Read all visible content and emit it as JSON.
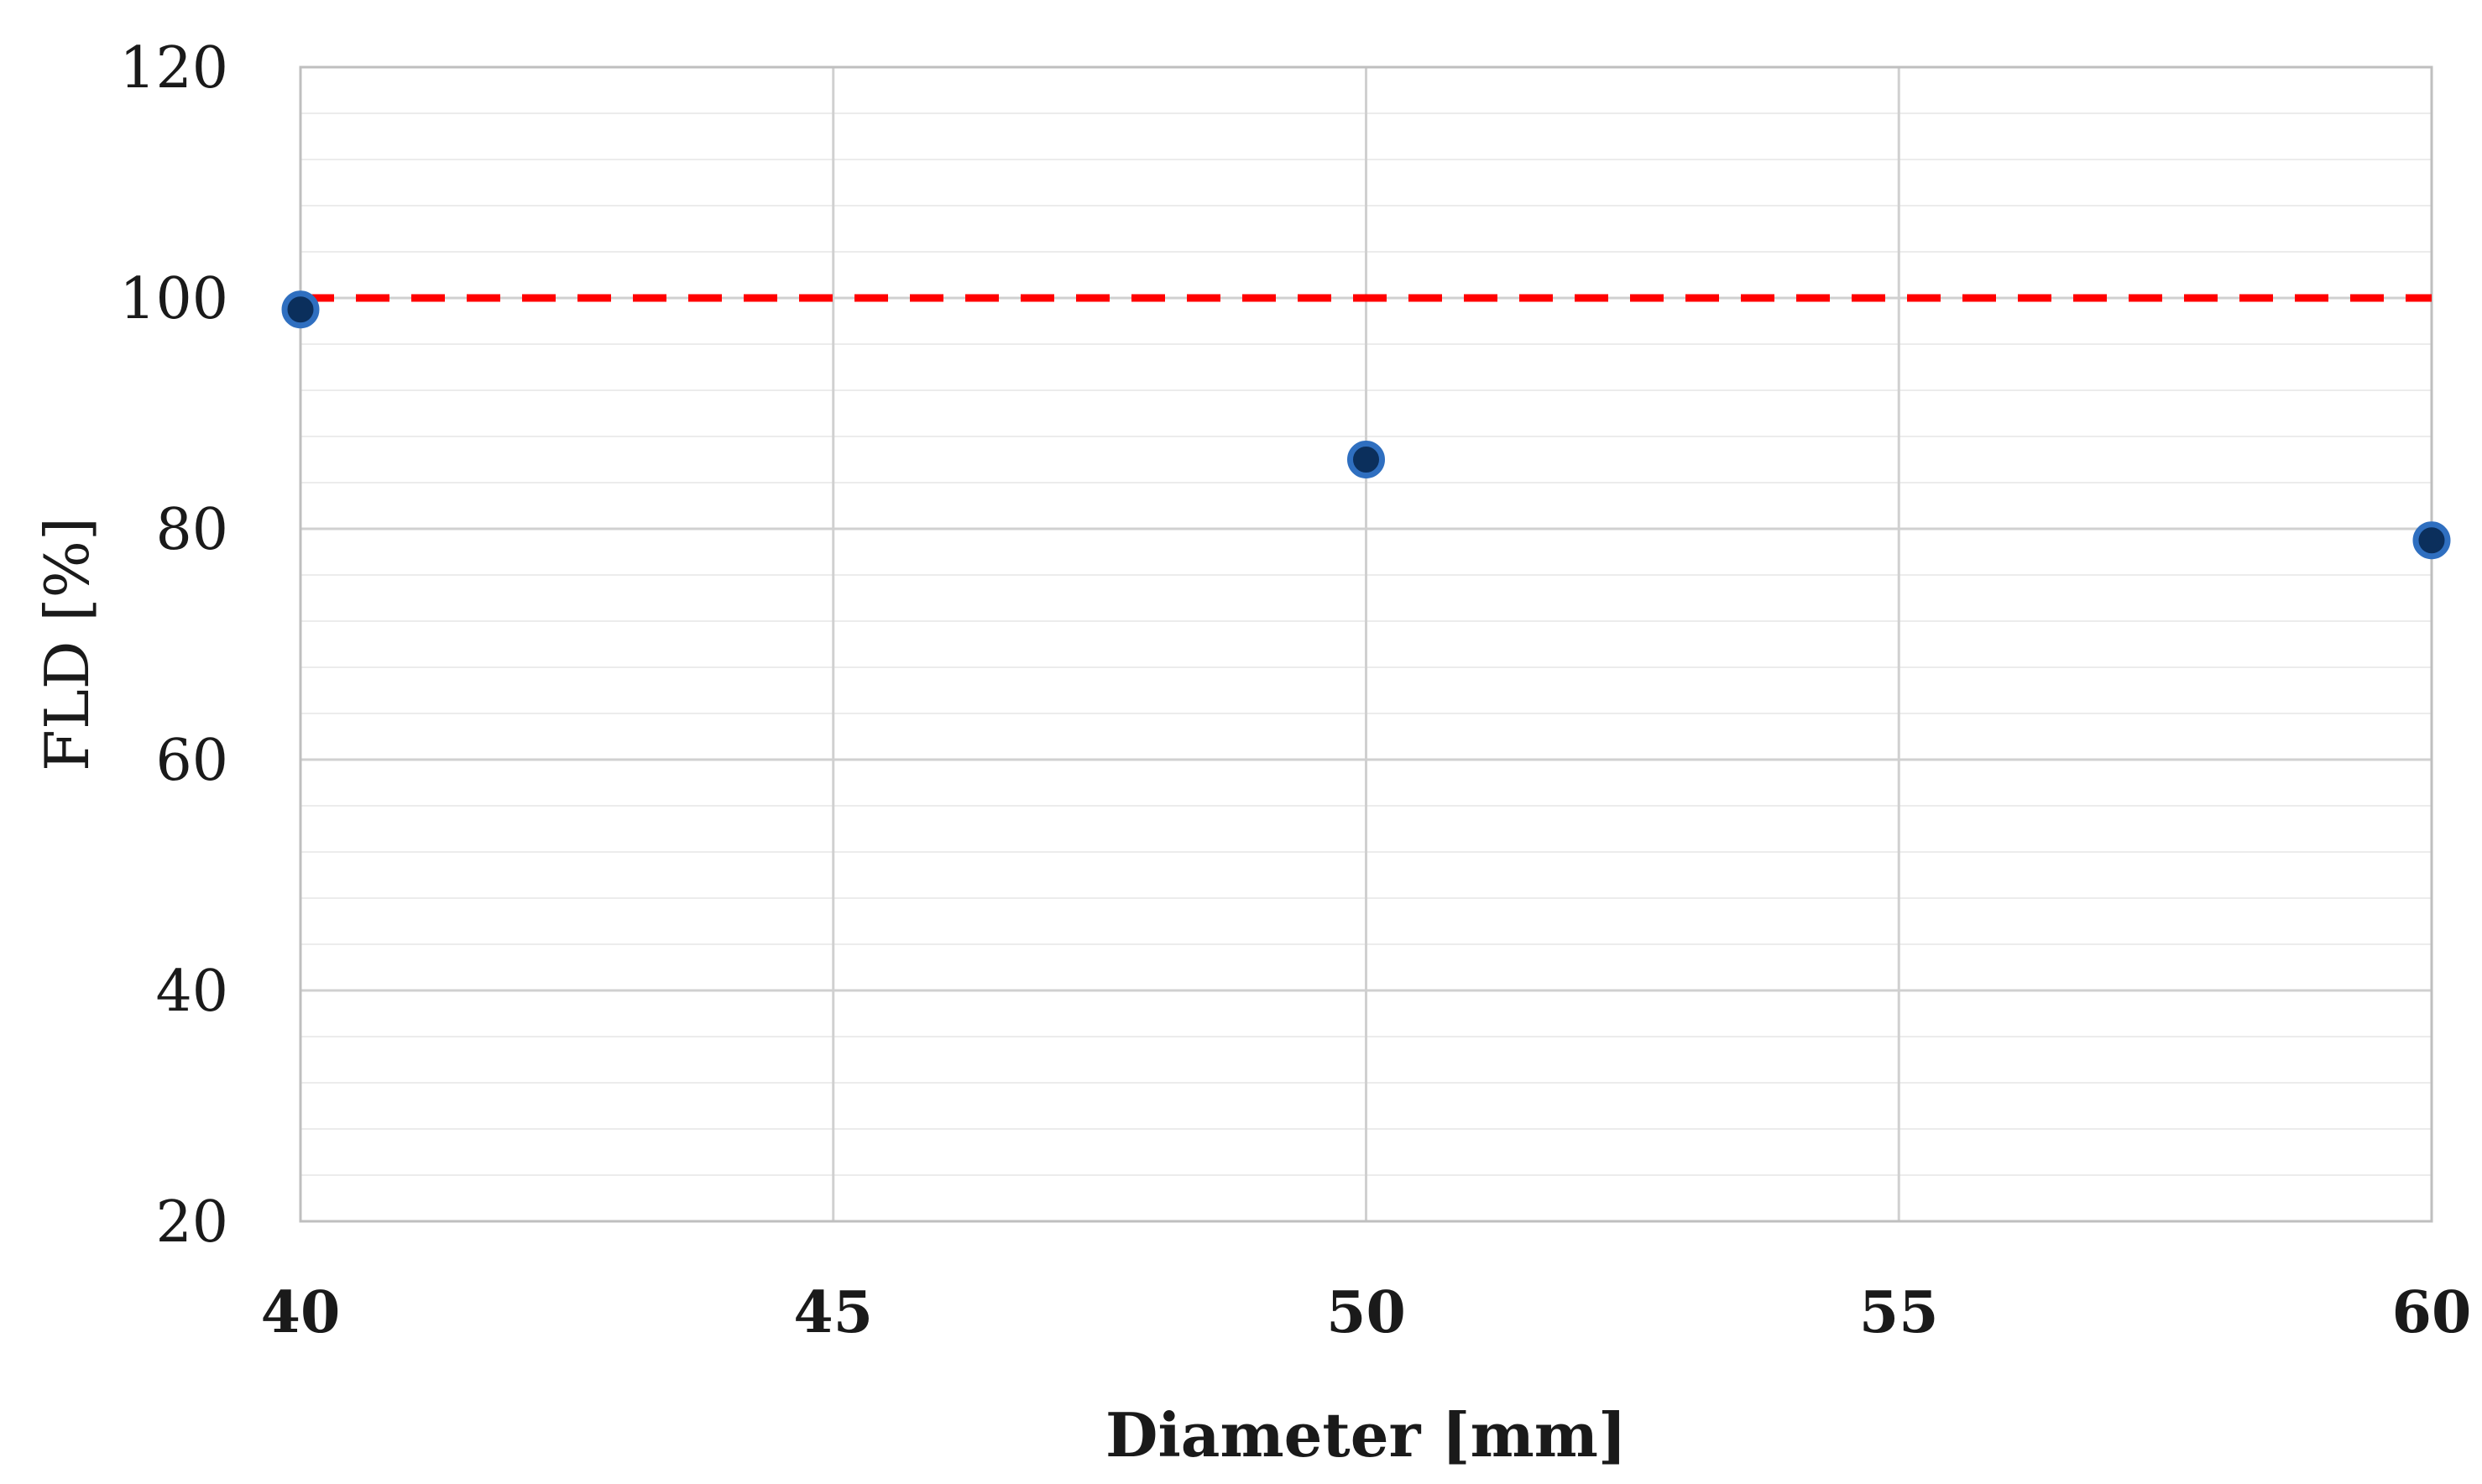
{
  "chart_data": {
    "type": "scatter",
    "title": "",
    "xlabel": "Diameter [mm]",
    "ylabel": "FLD [%]",
    "xlim": [
      40,
      60
    ],
    "ylim": [
      20,
      120
    ],
    "x_ticks": [
      40,
      45,
      50,
      55,
      60
    ],
    "y_ticks": [
      20,
      40,
      60,
      80,
      100,
      120
    ],
    "minor_y_step": 4,
    "grid": true,
    "series": [
      {
        "x": [
          40,
          50,
          60
        ],
        "y": [
          99,
          86,
          79
        ],
        "marker_color": "#0b2f5c",
        "marker_edge_color": "#2f6fc0"
      }
    ],
    "reference_lines": [
      {
        "orientation": "horizontal",
        "y": 100,
        "style": "dashed",
        "color": "#ff0000"
      }
    ]
  },
  "colors": {
    "major_grid": "#d0d0d0",
    "minor_grid": "#ececec",
    "axis": "#bfbfbf"
  }
}
